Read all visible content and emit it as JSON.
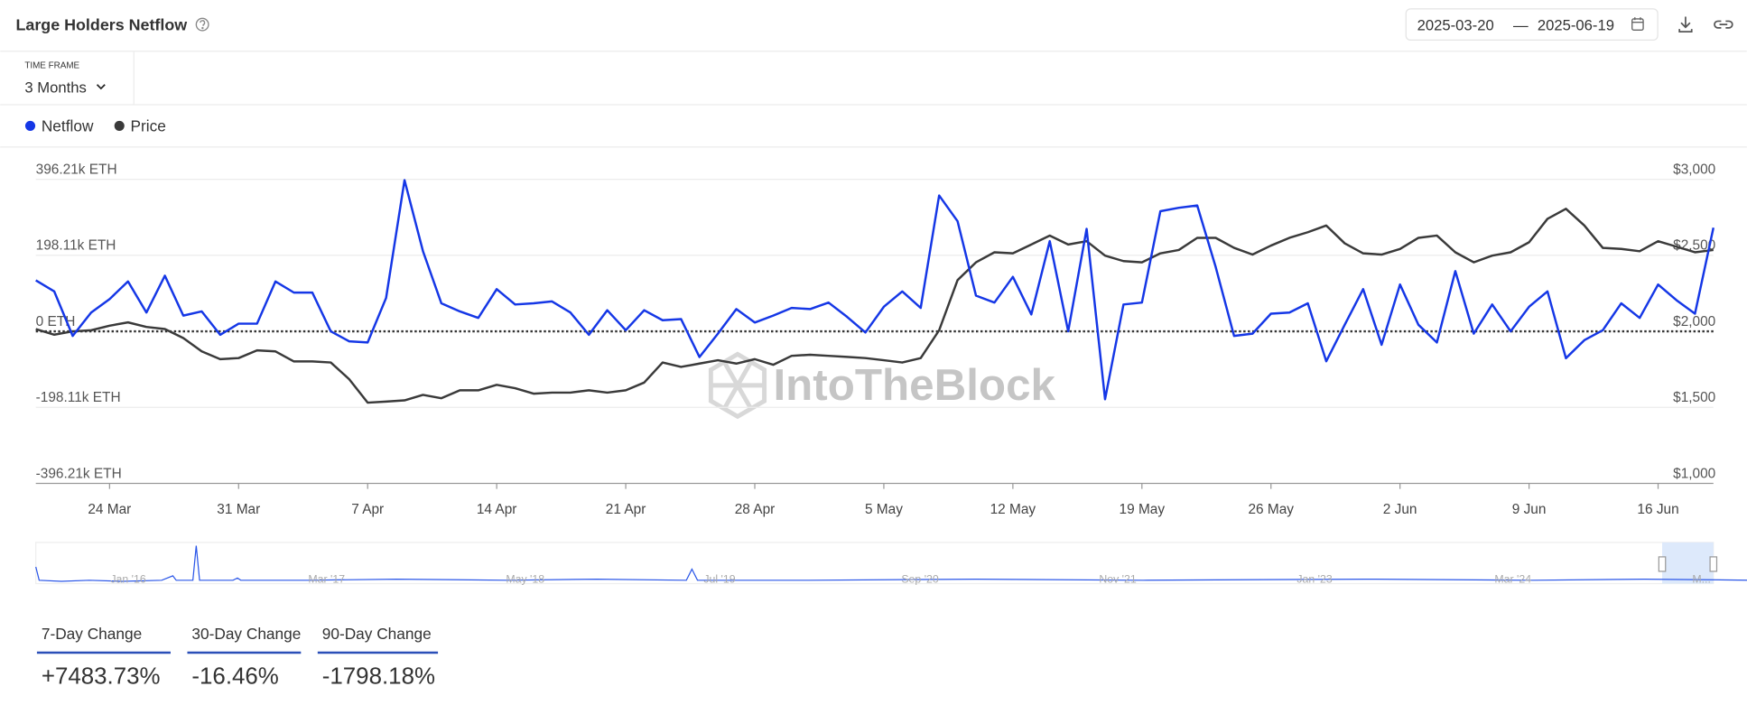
{
  "header": {
    "title": "Large Holders Netflow",
    "date_start": "2025-03-20",
    "date_separator": "—",
    "date_end": "2025-06-19"
  },
  "time_frame": {
    "label": "TIME FRAME",
    "value": "3 Months"
  },
  "chart_data": {
    "type": "line",
    "x": [
      "20 Mar",
      "21 Mar",
      "22 Mar",
      "23 Mar",
      "24 Mar",
      "25 Mar",
      "26 Mar",
      "27 Mar",
      "28 Mar",
      "29 Mar",
      "30 Mar",
      "31 Mar",
      "1 Apr",
      "2 Apr",
      "3 Apr",
      "4 Apr",
      "5 Apr",
      "6 Apr",
      "7 Apr",
      "8 Apr",
      "9 Apr",
      "10 Apr",
      "11 Apr",
      "12 Apr",
      "13 Apr",
      "14 Apr",
      "15 Apr",
      "16 Apr",
      "17 Apr",
      "18 Apr",
      "19 Apr",
      "20 Apr",
      "21 Apr",
      "22 Apr",
      "23 Apr",
      "24 Apr",
      "25 Apr",
      "26 Apr",
      "27 Apr",
      "28 Apr",
      "29 Apr",
      "30 Apr",
      "1 May",
      "2 May",
      "3 May",
      "4 May",
      "5 May",
      "6 May",
      "7 May",
      "8 May",
      "9 May",
      "10 May",
      "11 May",
      "12 May",
      "13 May",
      "14 May",
      "15 May",
      "16 May",
      "17 May",
      "18 May",
      "19 May",
      "20 May",
      "21 May",
      "22 May",
      "23 May",
      "24 May",
      "25 May",
      "26 May",
      "27 May",
      "28 May",
      "29 May",
      "30 May",
      "31 May",
      "1 Jun",
      "2 Jun",
      "3 Jun",
      "4 Jun",
      "5 Jun",
      "6 Jun",
      "7 Jun",
      "8 Jun",
      "9 Jun",
      "10 Jun",
      "11 Jun",
      "12 Jun",
      "13 Jun",
      "14 Jun",
      "15 Jun",
      "16 Jun",
      "17 Jun",
      "18 Jun",
      "19 Jun"
    ],
    "xticks": [
      "24 Mar",
      "31 Mar",
      "7 Apr",
      "14 Apr",
      "21 Apr",
      "28 Apr",
      "5 May",
      "12 May",
      "19 May",
      "26 May",
      "2 Jun",
      "9 Jun",
      "16 Jun"
    ],
    "series": [
      {
        "name": "Netflow",
        "color": "#1537e6",
        "values": [
          133000,
          104000,
          -12000,
          49000,
          84000,
          130000,
          49000,
          145000,
          41000,
          52000,
          -9000,
          20000,
          20000,
          130000,
          101000,
          101000,
          0,
          -26000,
          -29000,
          87000,
          394000,
          209000,
          73000,
          52000,
          35000,
          110000,
          70000,
          73000,
          78000,
          49000,
          -9000,
          55000,
          3000,
          55000,
          29000,
          32000,
          -67000,
          -6000,
          58000,
          23000,
          41000,
          61000,
          58000,
          75000,
          38000,
          -3000,
          64000,
          104000,
          61000,
          354000,
          287000,
          93000,
          75000,
          142000,
          44000,
          235000,
          0,
          267000,
          -177000,
          70000,
          75000,
          313000,
          322000,
          328000,
          168000,
          -12000,
          -6000,
          46000,
          49000,
          73000,
          -78000,
          17000,
          110000,
          -35000,
          122000,
          17000,
          -29000,
          157000,
          -6000,
          70000,
          0,
          64000,
          104000,
          -70000,
          -23000,
          3000,
          73000,
          35000,
          122000,
          81000,
          46000,
          270000
        ]
      },
      {
        "name": "Price",
        "color": "#3a3a3a",
        "axis": "y2",
        "values": [
          2015,
          1978,
          2000,
          2007,
          2037,
          2059,
          2029,
          2015,
          1956,
          1868,
          1817,
          1824,
          1875,
          1868,
          1802,
          1802,
          1795,
          1685,
          1531,
          1538,
          1546,
          1582,
          1560,
          1612,
          1612,
          1648,
          1626,
          1590,
          1597,
          1597,
          1612,
          1597,
          1612,
          1663,
          1795,
          1766,
          1788,
          1810,
          1788,
          1817,
          1780,
          1839,
          1846,
          1839,
          1832,
          1824,
          1810,
          1795,
          1824,
          2007,
          2337,
          2454,
          2520,
          2513,
          2571,
          2630,
          2571,
          2593,
          2498,
          2462,
          2454,
          2513,
          2535,
          2615,
          2615,
          2549,
          2505,
          2564,
          2615,
          2652,
          2696,
          2579,
          2513,
          2505,
          2542,
          2615,
          2630,
          2520,
          2454,
          2498,
          2520,
          2586,
          2740,
          2806,
          2696,
          2549,
          2542,
          2527,
          2593,
          2557,
          2520,
          2535
        ]
      }
    ],
    "ylim": [
      -396210,
      396210
    ],
    "yticks": [
      {
        "value": -396210,
        "label": "-396.21k ETH"
      },
      {
        "value": -198110,
        "label": "-198.11k ETH"
      },
      {
        "value": 0,
        "label": "0 ETH"
      },
      {
        "value": 198110,
        "label": "198.11k ETH"
      },
      {
        "value": 396210,
        "label": "396.21k ETH"
      }
    ],
    "y2lim": [
      1000,
      3000
    ],
    "y2ticks": [
      {
        "value": 1000,
        "label": "$1,000"
      },
      {
        "value": 1500,
        "label": "$1,500"
      },
      {
        "value": 2000,
        "label": "$2,000"
      },
      {
        "value": 2500,
        "label": "$2,500"
      },
      {
        "value": 3000,
        "label": "$3,000"
      }
    ],
    "grid": true,
    "watermark": "IntoTheBlock"
  },
  "navigator": {
    "labels": [
      "Jan '16",
      "Mar '17",
      "May '18",
      "Jul '19",
      "Sep '20",
      "Nov '21",
      "Jan '23",
      "Mar '24",
      "M..."
    ]
  },
  "stats": [
    {
      "label": "7-Day Change",
      "value": "+7483.73%"
    },
    {
      "label": "30-Day Change",
      "value": "-16.46%"
    },
    {
      "label": "90-Day Change",
      "value": "-1798.18%"
    }
  ]
}
